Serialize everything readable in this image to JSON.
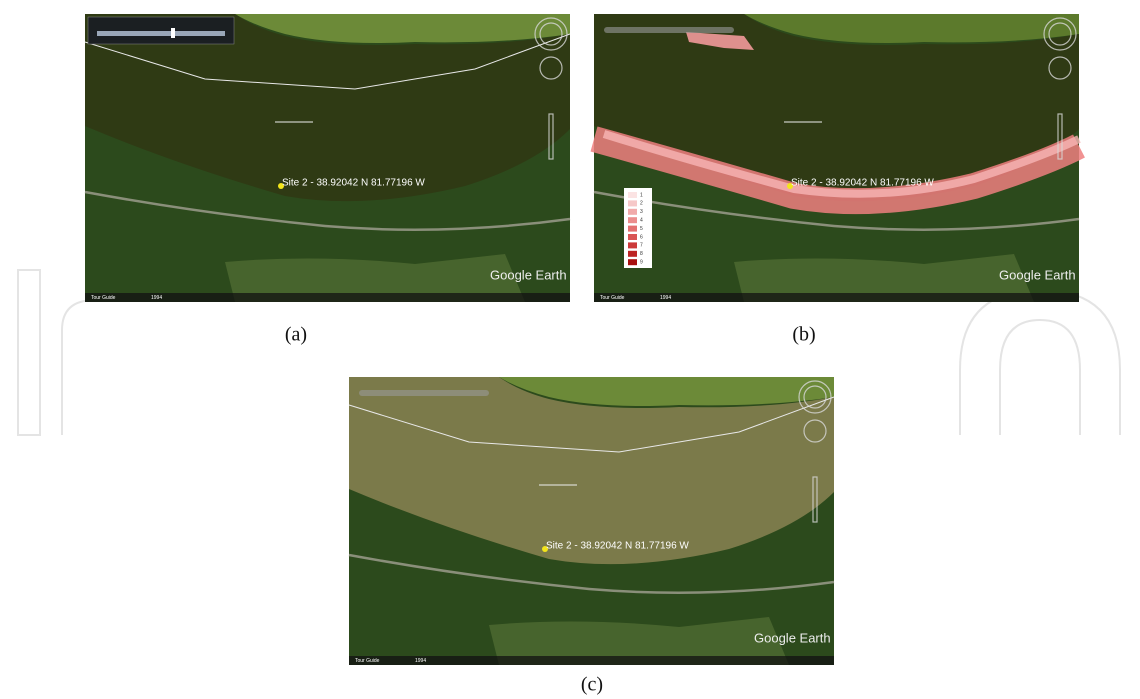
{
  "panels": [
    {
      "label": "(a)",
      "placemark": "Site 2 - 38.92042 N 81.77196 W",
      "watermark": "Google Earth",
      "tour_guide": "Tour Guide",
      "year": "1994"
    },
    {
      "label": "(b)",
      "placemark": "Site 2 - 38.92042 N 81.77196 W",
      "watermark": "Google Earth",
      "tour_guide": "Tour Guide",
      "year": "1994"
    },
    {
      "label": "(c)",
      "placemark": "Site 2 - 38.92042 N 81.77196 W",
      "watermark": "Google Earth",
      "tour_guide": "Tour Guide",
      "year": "1994"
    }
  ],
  "legend": {
    "items": [
      "1",
      "2",
      "3",
      "4",
      "5",
      "6",
      "7",
      "8",
      "9"
    ]
  }
}
